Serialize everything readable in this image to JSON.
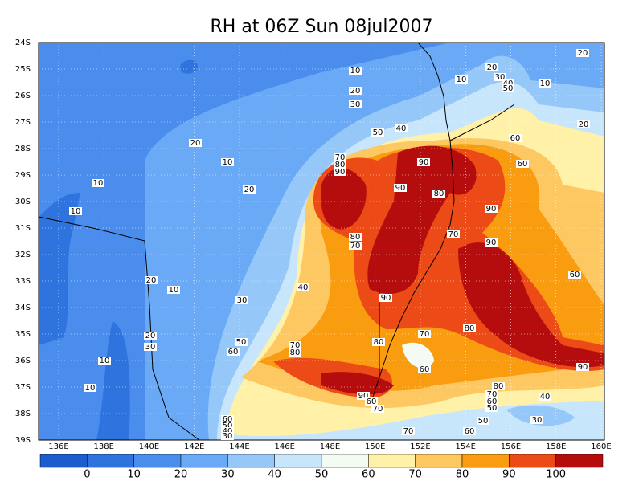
{
  "title": "RH at 06Z Sun 08jul2007",
  "lon_labels": [
    "136E",
    "138E",
    "140E",
    "142E",
    "144E",
    "146E",
    "148E",
    "150E",
    "152E",
    "154E",
    "156E",
    "158E",
    "160E"
  ],
  "lat_labels": [
    "24S",
    "25S",
    "26S",
    "27S",
    "28S",
    "29S",
    "30S",
    "31S",
    "32S",
    "33S",
    "34S",
    "35S",
    "36S",
    "37S",
    "38S",
    "39S"
  ],
  "colorbar": {
    "colors": [
      "#1c5ccf",
      "#2f74de",
      "#4a8ded",
      "#6aa9f5",
      "#96c7f9",
      "#c7e6fc",
      "#f3fbf3",
      "#fff1a8",
      "#fdc761",
      "#fa9c0f",
      "#ec4a16",
      "#b50d0d"
    ],
    "labels": [
      0,
      10,
      20,
      30,
      40,
      50,
      60,
      70,
      80,
      90,
      100
    ]
  },
  "contour_labels": [
    10,
    10,
    20,
    30,
    40,
    50,
    10,
    20,
    20,
    30,
    50,
    40,
    60,
    20,
    60,
    20,
    10,
    10,
    10,
    20,
    70,
    80,
    90,
    90,
    90,
    80,
    90,
    70,
    80,
    70,
    90,
    60,
    40,
    90,
    20,
    10,
    30,
    20,
    30,
    10,
    10,
    50,
    60,
    70,
    80,
    80,
    70,
    80,
    60,
    90,
    80,
    70,
    60,
    50,
    90,
    60,
    70,
    40,
    50,
    30,
    60,
    70,
    60,
    50,
    40,
    30
  ]
}
